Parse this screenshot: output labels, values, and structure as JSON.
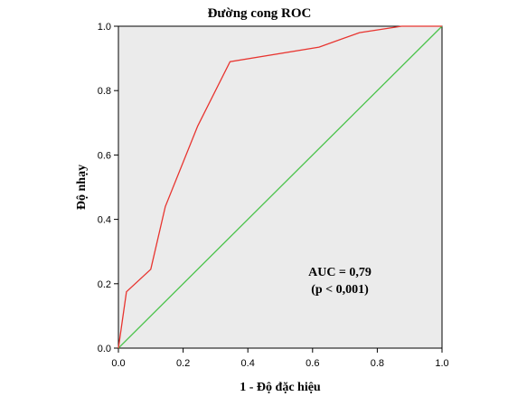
{
  "chart_data": {
    "type": "line",
    "title": "Đường cong ROC",
    "xlabel": "1 - Độ đặc hiệu",
    "ylabel": "Độ nhạy",
    "xlim": [
      0.0,
      1.0
    ],
    "ylim": [
      0.0,
      1.0
    ],
    "xticks": [
      "0.0",
      "0.2",
      "0.4",
      "0.6",
      "0.8",
      "1.0"
    ],
    "yticks": [
      "0.0",
      "0.2",
      "0.4",
      "0.6",
      "0.8",
      "1.0"
    ],
    "grid": false,
    "background_color": "#ebebeb",
    "series": [
      {
        "color": "#e8342f",
        "x": [
          0.0,
          0.025,
          0.1,
          0.145,
          0.245,
          0.345,
          0.62,
          0.745,
          0.875,
          1.0
        ],
        "y": [
          0.0,
          0.175,
          0.245,
          0.44,
          0.69,
          0.89,
          0.935,
          0.98,
          1.0,
          1.0
        ]
      },
      {
        "color": "#4cc34c",
        "x": [
          0.0,
          1.0
        ],
        "y": [
          0.0,
          1.0
        ]
      }
    ],
    "annotations": [
      "AUC = 0,79",
      "(p < 0,001)"
    ]
  }
}
